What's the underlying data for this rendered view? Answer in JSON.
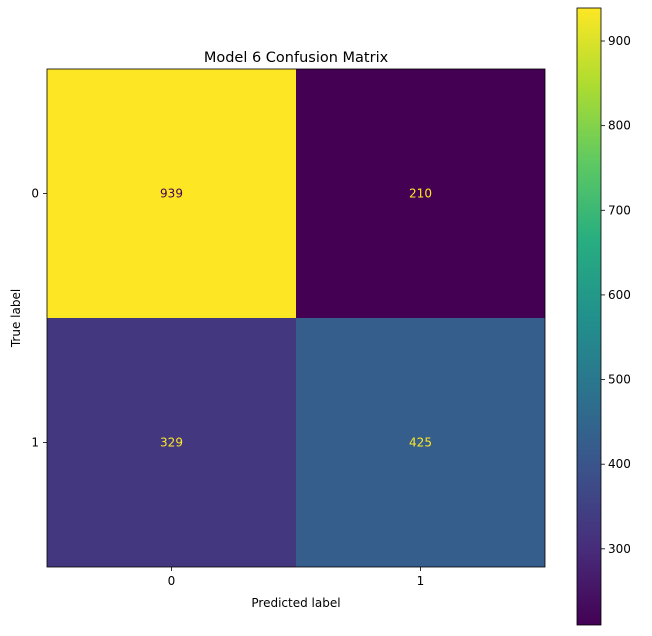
{
  "chart_data": {
    "type": "heatmap",
    "title": "Model 6 Confusion Matrix",
    "xlabel": "Predicted label",
    "ylabel": "True label",
    "x_categories": [
      "0",
      "1"
    ],
    "y_categories": [
      "0",
      "1"
    ],
    "values": [
      [
        939,
        210
      ],
      [
        329,
        425
      ]
    ],
    "colormap": "viridis",
    "colorbar": {
      "range": [
        210,
        939
      ],
      "ticks": [
        300,
        400,
        500,
        600,
        700,
        800,
        900
      ]
    }
  }
}
